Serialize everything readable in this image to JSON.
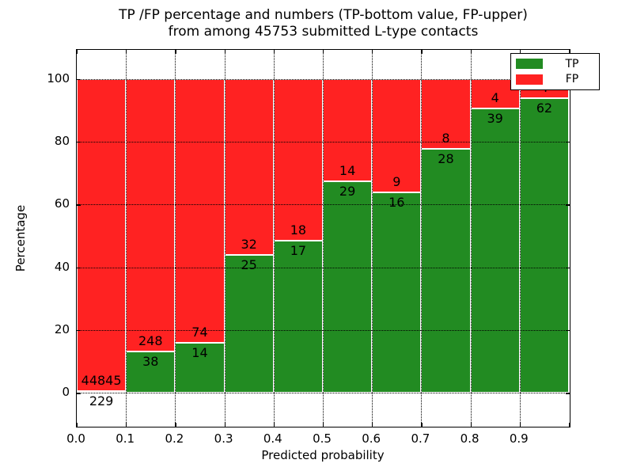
{
  "title": {
    "line1": "TP /FP percentage and numbers (TP-bottom value, FP-upper)",
    "line2": "from among 45753 submitted L-type contacts"
  },
  "axes": {
    "x_label": "Predicted probability",
    "y_label": "Percentage",
    "x_ticks": [
      "0.0",
      "0.1",
      "0.2",
      "0.3",
      "0.4",
      "0.5",
      "0.6",
      "0.7",
      "0.8",
      "0.9"
    ],
    "y_ticks": [
      "0",
      "20",
      "40",
      "60",
      "80",
      "100"
    ]
  },
  "legend": {
    "items": [
      {
        "label": "TP",
        "color": "#228b22"
      },
      {
        "label": "FP",
        "color": "#ff2222"
      }
    ]
  },
  "colors": {
    "tp_green": "#228b22",
    "fp_red": "#ff2222",
    "axis_black": "#000000",
    "background": "#ffffff"
  },
  "chart_data": {
    "type": "bar",
    "stacked": true,
    "normalized_to_percent": true,
    "title": "TP /FP percentage and numbers (TP-bottom value, FP-upper) from among 45753 submitted L-type contacts",
    "xlabel": "Predicted probability",
    "ylabel": "Percentage",
    "total_contacts": 45753,
    "bin_edges": [
      0.0,
      0.1,
      0.2,
      0.3,
      0.4,
      0.5,
      0.6,
      0.7,
      0.8,
      0.9,
      1.0
    ],
    "categories": [
      "0.0-0.1",
      "0.1-0.2",
      "0.2-0.3",
      "0.3-0.4",
      "0.4-0.5",
      "0.5-0.6",
      "0.6-0.7",
      "0.7-0.8",
      "0.8-0.9",
      "0.9-1.0"
    ],
    "series": [
      {
        "name": "TP",
        "color": "#228b22",
        "counts": [
          229,
          38,
          14,
          25,
          17,
          29,
          16,
          28,
          39,
          62
        ]
      },
      {
        "name": "FP",
        "color": "#ff2222",
        "counts": [
          44845,
          248,
          74,
          32,
          18,
          14,
          9,
          8,
          4,
          4
        ]
      }
    ],
    "tp_percent": [
      0.51,
      13.29,
      15.91,
      43.86,
      48.57,
      67.44,
      64.0,
      77.78,
      90.7,
      93.94
    ],
    "ylim": [
      -10.5,
      109.3
    ],
    "xlim": [
      0.0,
      1.0
    ],
    "grid": "dotted",
    "legend_position": "upper right",
    "note": "FP count label of last bin is occluded by the legend box"
  }
}
